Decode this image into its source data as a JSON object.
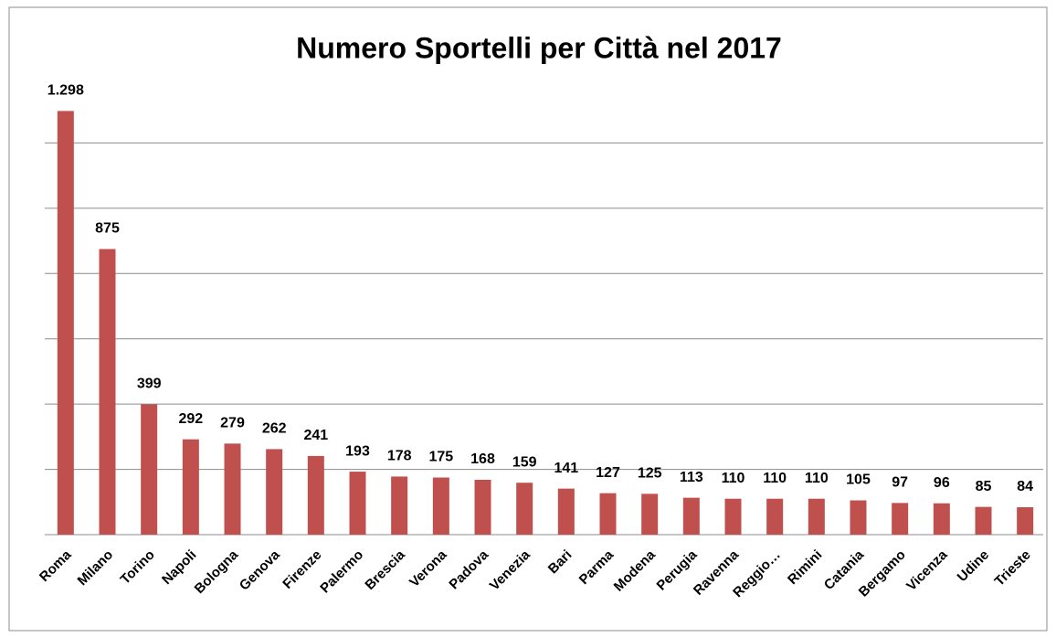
{
  "chart_data": {
    "type": "bar",
    "title": "Numero Sportelli per Città nel 2017",
    "categories": [
      "Roma",
      "Milano",
      "Torino",
      "Napoli",
      "Bologna",
      "Genova",
      "Firenze",
      "Palermo",
      "Brescia",
      "Verona",
      "Padova",
      "Venezia",
      "Bari",
      "Parma",
      "Modena",
      "Perugia",
      "Ravenna",
      "Reggio…",
      "Rimini",
      "Catania",
      "Bergamo",
      "Vicenza",
      "Udine",
      "Trieste"
    ],
    "values": [
      1298,
      875,
      399,
      292,
      279,
      262,
      241,
      193,
      178,
      175,
      168,
      159,
      141,
      127,
      125,
      113,
      110,
      110,
      110,
      105,
      97,
      96,
      85,
      84
    ],
    "value_labels": [
      "1.298",
      "875",
      "399",
      "292",
      "279",
      "262",
      "241",
      "193",
      "178",
      "175",
      "168",
      "159",
      "141",
      "127",
      "125",
      "113",
      "110",
      "110",
      "110",
      "105",
      "97",
      "96",
      "85",
      "84"
    ],
    "color": "#c0504d",
    "ylim": [
      0,
      1400
    ],
    "yticks": [
      0,
      200,
      400,
      600,
      800,
      1000,
      1200
    ],
    "grid": true
  }
}
